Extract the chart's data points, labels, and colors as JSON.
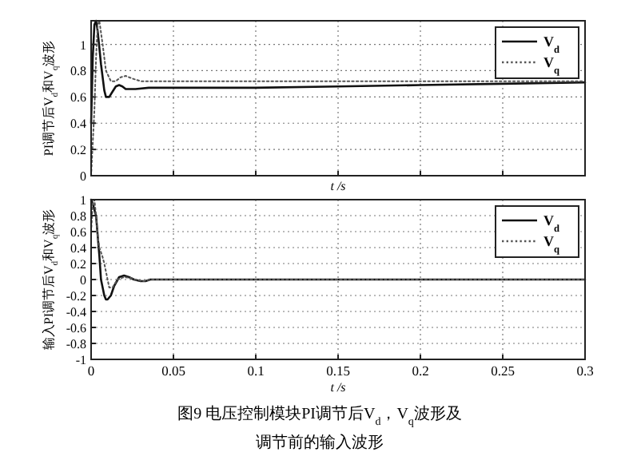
{
  "chart_data": [
    {
      "type": "line",
      "xlabel": "t /s",
      "ylabel": "PI调节后V$_{d}$和V$_{q}$波形",
      "xlim": [
        0,
        0.3
      ],
      "xticks": [
        0,
        0.05,
        0.1,
        0.15,
        0.2,
        0.25,
        0.3
      ],
      "ylim": [
        0,
        1.18
      ],
      "yticks": [
        0,
        0.2,
        0.4,
        0.6,
        0.8,
        1
      ],
      "tick_labels": "y",
      "grid": true,
      "legend": "top right",
      "series": [
        {
          "name": "V$_{d}$",
          "color": "#111111",
          "line_style": "solid",
          "x": [
            0,
            0.001,
            0.002,
            0.003,
            0.004,
            0.006,
            0.008,
            0.009,
            0.011,
            0.013,
            0.015,
            0.017,
            0.019,
            0.021,
            0.023,
            0.027,
            0.035,
            0.05,
            0.1,
            0.15,
            0.2,
            0.25,
            0.3
          ],
          "values": [
            0.4,
            0.9,
            1.15,
            1.18,
            1.1,
            0.85,
            0.65,
            0.6,
            0.6,
            0.64,
            0.68,
            0.69,
            0.68,
            0.66,
            0.66,
            0.66,
            0.67,
            0.67,
            0.67,
            0.68,
            0.69,
            0.7,
            0.71
          ]
        },
        {
          "name": "V$_{q}$",
          "color": "#555555",
          "line_style": "dotted",
          "x": [
            0,
            0.002,
            0.003,
            0.004,
            0.005,
            0.007,
            0.009,
            0.012,
            0.015,
            0.018,
            0.021,
            0.025,
            0.03,
            0.04,
            0.05,
            0.1,
            0.2,
            0.3
          ],
          "values": [
            0,
            0.5,
            0.9,
            1.15,
            1.18,
            1.0,
            0.8,
            0.72,
            0.72,
            0.75,
            0.76,
            0.74,
            0.72,
            0.72,
            0.72,
            0.72,
            0.72,
            0.72
          ]
        }
      ]
    },
    {
      "type": "line",
      "xlabel": "t /s",
      "ylabel": "输入PI调节后V$_{d}$和V$_{q}$波形",
      "xlim": [
        0,
        0.3
      ],
      "xticks": [
        0,
        0.05,
        0.1,
        0.15,
        0.2,
        0.25,
        0.3
      ],
      "ylim": [
        -1,
        1
      ],
      "yticks": [
        -1,
        -0.8,
        -0.6,
        -0.4,
        -0.2,
        0,
        0.2,
        0.4,
        0.6,
        0.8,
        1
      ],
      "grid": true,
      "legend": "top right",
      "annotations": [
        "图9 电压控制模块PI调节后V$_{d}$，V$_{q}$波形及",
        "调节前的输入波形"
      ],
      "series": [
        {
          "name": "V$_{d}$",
          "color": "#111111",
          "line_style": "solid",
          "x": [
            0,
            0.001,
            0.003,
            0.005,
            0.006,
            0.008,
            0.009,
            0.01,
            0.012,
            0.014,
            0.017,
            0.02,
            0.023,
            0.026,
            0.03,
            0.033,
            0.036,
            0.05,
            0.1,
            0.2,
            0.3
          ],
          "values": [
            1,
            0.95,
            0.8,
            0.3,
            0,
            -0.2,
            -0.25,
            -0.25,
            -0.2,
            -0.08,
            0.03,
            0.05,
            0.03,
            0,
            -0.02,
            -0.02,
            0,
            0,
            0,
            0,
            0
          ]
        },
        {
          "name": "V$_{q}$",
          "color": "#555555",
          "line_style": "dotted",
          "x": [
            0,
            0.001,
            0.002,
            0.003,
            0.004,
            0.005,
            0.007,
            0.008,
            0.01,
            0.011,
            0.013,
            0.016,
            0.02,
            0.024,
            0.028,
            0.032,
            0.036,
            0.05,
            0.1,
            0.2,
            0.3
          ],
          "values": [
            0.6,
            0.95,
            1,
            0.8,
            0.55,
            0.4,
            0.28,
            0.2,
            0,
            -0.1,
            -0.1,
            0,
            0.03,
            0.02,
            -0.01,
            -0.02,
            0,
            0,
            0,
            0,
            0
          ]
        }
      ]
    }
  ]
}
